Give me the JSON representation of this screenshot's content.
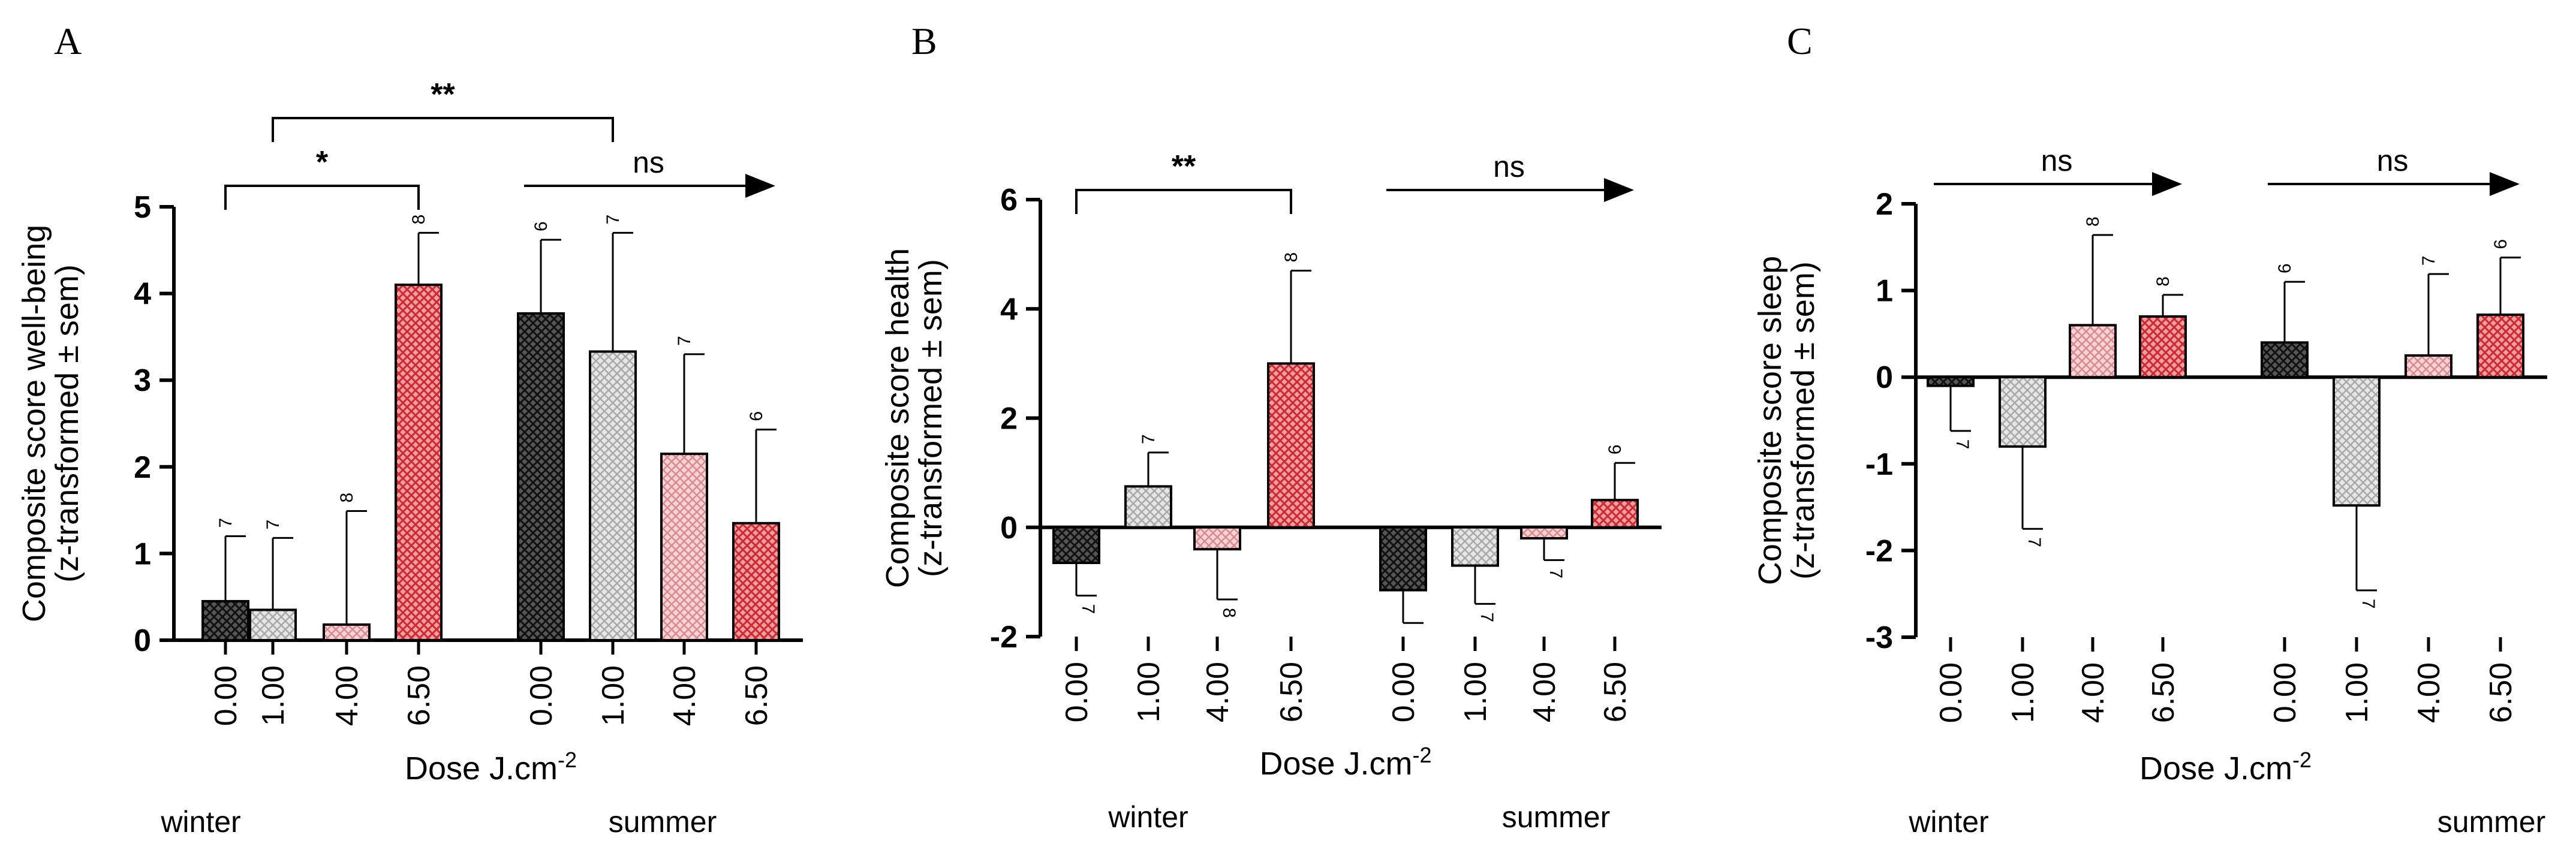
{
  "palette": {
    "black_pattern": "#222222",
    "grey_pattern": "#b8b8b8",
    "pink_pattern": "#e7a8ac",
    "red_pattern": "#d8353c"
  },
  "chart_data": [
    {
      "type": "bar",
      "panel": "A",
      "title": "",
      "xlabel": "Dose J.cm",
      "xlabel_sup": "-2",
      "ylabel_line1": "Composite score well-being",
      "ylabel_line2": "(z-transformed ± sem)",
      "ylim": [
        0,
        5
      ],
      "yticks": [
        "0",
        "1",
        "2",
        "3",
        "4",
        "5"
      ],
      "categories": [
        "0.00",
        "1.00",
        "4.00",
        "6.50",
        "0.00",
        "1.00",
        "4.00",
        "6.50"
      ],
      "groups": [
        "winter",
        "winter",
        "winter",
        "winter",
        "summer",
        "summer",
        "summer",
        "summer"
      ],
      "values": [
        0.45,
        0.35,
        0.18,
        4.1,
        3.77,
        3.33,
        2.15,
        1.35
      ],
      "errors": [
        0.75,
        0.83,
        1.31,
        0.6,
        0.85,
        1.37,
        1.15,
        1.08
      ],
      "n_labels": [
        "7",
        "7",
        "8",
        "8",
        "6",
        "7",
        "7",
        "6"
      ],
      "season_labels": [
        "winter",
        "summer"
      ],
      "annotations": [
        {
          "text": "*",
          "kind": "bracket",
          "from": 0,
          "to": 3
        },
        {
          "text": "**",
          "kind": "bracket",
          "from": 1,
          "to": 5
        },
        {
          "text": "ns",
          "kind": "arrow",
          "from": 4,
          "to": 7
        }
      ]
    },
    {
      "type": "bar",
      "panel": "B",
      "title": "",
      "xlabel": "Dose J.cm",
      "xlabel_sup": "-2",
      "ylabel_line1": "Composite score health",
      "ylabel_line2": "(z-transformed ± sem)",
      "ylim": [
        -2,
        6
      ],
      "yticks": [
        "-2",
        "0",
        "2",
        "4",
        "6"
      ],
      "categories": [
        "0.00",
        "1.00",
        "4.00",
        "6.50",
        "0.00",
        "1.00",
        "4.00",
        "6.50"
      ],
      "groups": [
        "winter",
        "winter",
        "winter",
        "winter",
        "summer",
        "summer",
        "summer",
        "summer"
      ],
      "values": [
        -0.65,
        0.75,
        -0.4,
        3.0,
        -1.15,
        -0.7,
        -0.2,
        0.5
      ],
      "errors": [
        0.6,
        0.62,
        0.92,
        1.7,
        0.6,
        0.7,
        0.4,
        0.68
      ],
      "n_labels": [
        "7",
        "7",
        "8",
        "8",
        "",
        "7",
        "7",
        "6"
      ],
      "season_labels": [
        "winter",
        "summer"
      ],
      "annotations": [
        {
          "text": "**",
          "kind": "bracket",
          "from": 0,
          "to": 3
        },
        {
          "text": "ns",
          "kind": "arrow",
          "from": 4,
          "to": 7
        }
      ]
    },
    {
      "type": "bar",
      "panel": "C",
      "title": "",
      "xlabel": "Dose J.cm",
      "xlabel_sup": "-2",
      "ylabel_line1": "Composite score sleep",
      "ylabel_line2": "(z-transformed ± sem)",
      "ylim": [
        -3,
        2
      ],
      "yticks": [
        "-3",
        "-2",
        "-1",
        "0",
        "1",
        "2"
      ],
      "categories": [
        "0.00",
        "1.00",
        "4.00",
        "6.50",
        "0.00",
        "1.00",
        "4.00",
        "6.50"
      ],
      "groups": [
        "winter",
        "winter",
        "winter",
        "winter",
        "summer",
        "summer",
        "summer",
        "summer"
      ],
      "values": [
        -0.1,
        -0.8,
        0.6,
        0.7,
        0.4,
        -1.48,
        0.25,
        0.72
      ],
      "errors": [
        0.52,
        0.95,
        1.04,
        0.25,
        0.7,
        0.98,
        0.94,
        0.66
      ],
      "n_labels": [
        "7",
        "7",
        "8",
        "8",
        "6",
        "7",
        "7",
        "6"
      ],
      "season_labels": [
        "winter",
        "summer"
      ],
      "annotations": [
        {
          "text": "ns",
          "kind": "arrow",
          "from": 0,
          "to": 3
        },
        {
          "text": "ns",
          "kind": "arrow",
          "from": 4,
          "to": 7
        }
      ]
    }
  ]
}
